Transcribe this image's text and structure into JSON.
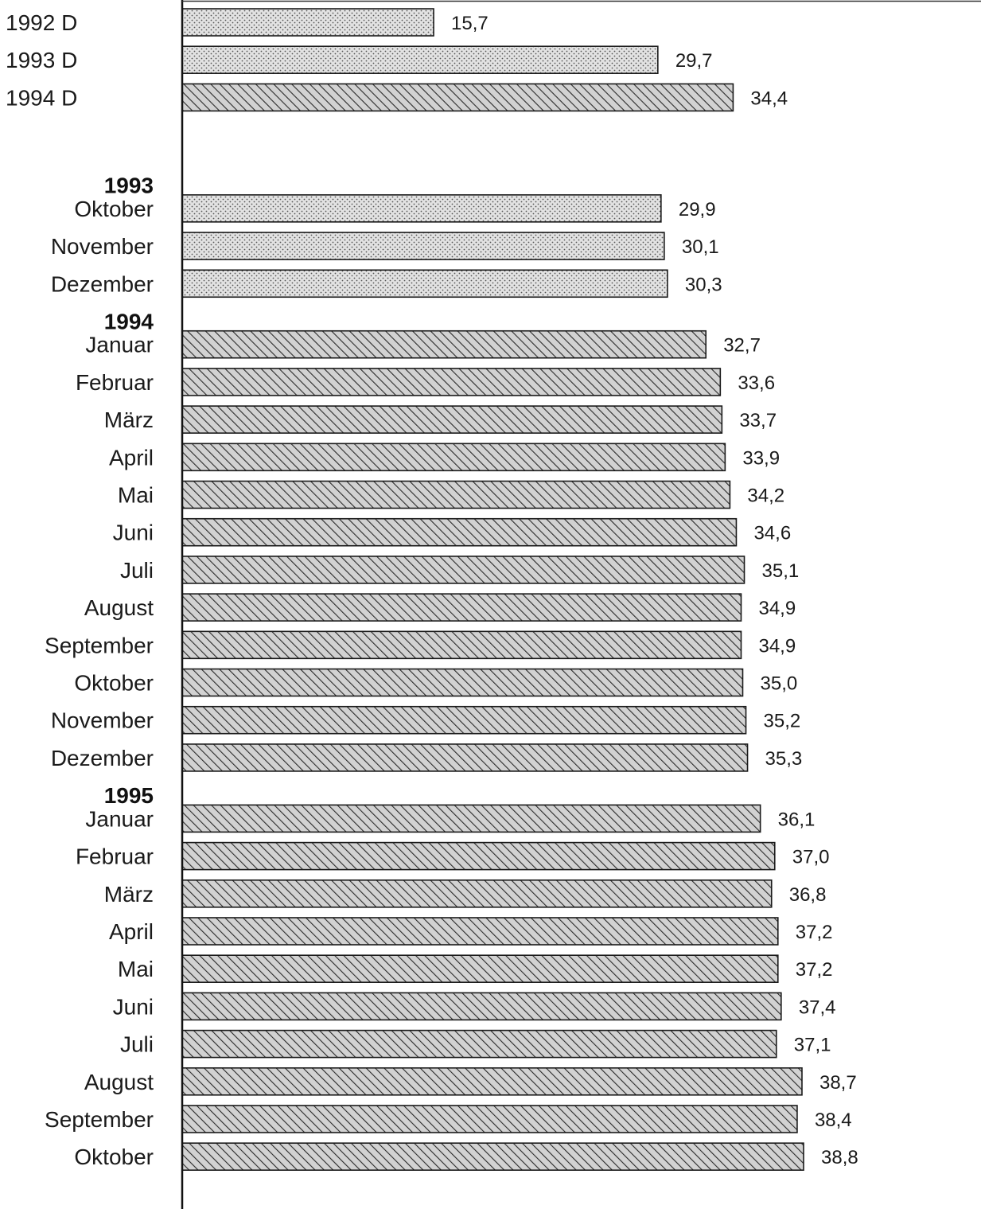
{
  "chart_data": {
    "type": "bar",
    "orientation": "horizontal",
    "title": "",
    "xlabel": "",
    "ylabel": "",
    "xlim": [
      0,
      40
    ],
    "grid": false,
    "legend": "none",
    "bar_color": "#d2d2d2",
    "hatch_color": "#2a2a2a",
    "rows": [
      {
        "kind": "bar",
        "label": "1992 D",
        "value": 15.7,
        "value_label": "15,7",
        "align": "left",
        "pattern": "dots"
      },
      {
        "kind": "bar",
        "label": "1993 D",
        "value": 29.7,
        "value_label": "29,7",
        "align": "left",
        "pattern": "dots"
      },
      {
        "kind": "bar",
        "label": "1994 D",
        "value": 34.4,
        "value_label": "34,4",
        "align": "left",
        "pattern": "hatch"
      },
      {
        "kind": "gap"
      },
      {
        "kind": "group",
        "label": "1993"
      },
      {
        "kind": "bar",
        "label": "Oktober",
        "value": 29.9,
        "value_label": "29,9",
        "align": "right",
        "pattern": "dots"
      },
      {
        "kind": "bar",
        "label": "November",
        "value": 30.1,
        "value_label": "30,1",
        "align": "right",
        "pattern": "dots"
      },
      {
        "kind": "bar",
        "label": "Dezember",
        "value": 30.3,
        "value_label": "30,3",
        "align": "right",
        "pattern": "dots"
      },
      {
        "kind": "group",
        "label": "1994"
      },
      {
        "kind": "bar",
        "label": "Januar",
        "value": 32.7,
        "value_label": "32,7",
        "align": "right",
        "pattern": "hatch"
      },
      {
        "kind": "bar",
        "label": "Februar",
        "value": 33.6,
        "value_label": "33,6",
        "align": "right",
        "pattern": "hatch"
      },
      {
        "kind": "bar",
        "label": "März",
        "value": 33.7,
        "value_label": "33,7",
        "align": "right",
        "pattern": "hatch"
      },
      {
        "kind": "bar",
        "label": "April",
        "value": 33.9,
        "value_label": "33,9",
        "align": "right",
        "pattern": "hatch"
      },
      {
        "kind": "bar",
        "label": "Mai",
        "value": 34.2,
        "value_label": "34,2",
        "align": "right",
        "pattern": "hatch"
      },
      {
        "kind": "bar",
        "label": "Juni",
        "value": 34.6,
        "value_label": "34,6",
        "align": "right",
        "pattern": "hatch"
      },
      {
        "kind": "bar",
        "label": "Juli",
        "value": 35.1,
        "value_label": "35,1",
        "align": "right",
        "pattern": "hatch"
      },
      {
        "kind": "bar",
        "label": "August",
        "value": 34.9,
        "value_label": "34,9",
        "align": "right",
        "pattern": "hatch"
      },
      {
        "kind": "bar",
        "label": "September",
        "value": 34.9,
        "value_label": "34,9",
        "align": "right",
        "pattern": "hatch"
      },
      {
        "kind": "bar",
        "label": "Oktober",
        "value": 35.0,
        "value_label": "35,0",
        "align": "right",
        "pattern": "hatch"
      },
      {
        "kind": "bar",
        "label": "November",
        "value": 35.2,
        "value_label": "35,2",
        "align": "right",
        "pattern": "hatch"
      },
      {
        "kind": "bar",
        "label": "Dezember",
        "value": 35.3,
        "value_label": "35,3",
        "align": "right",
        "pattern": "hatch"
      },
      {
        "kind": "group",
        "label": "1995"
      },
      {
        "kind": "bar",
        "label": "Januar",
        "value": 36.1,
        "value_label": "36,1",
        "align": "right",
        "pattern": "hatch"
      },
      {
        "kind": "bar",
        "label": "Februar",
        "value": 37.0,
        "value_label": "37,0",
        "align": "right",
        "pattern": "hatch"
      },
      {
        "kind": "bar",
        "label": "März",
        "value": 36.8,
        "value_label": "36,8",
        "align": "right",
        "pattern": "hatch"
      },
      {
        "kind": "bar",
        "label": "April",
        "value": 37.2,
        "value_label": "37,2",
        "align": "right",
        "pattern": "hatch"
      },
      {
        "kind": "bar",
        "label": "Mai",
        "value": 37.2,
        "value_label": "37,2",
        "align": "right",
        "pattern": "hatch"
      },
      {
        "kind": "bar",
        "label": "Juni",
        "value": 37.4,
        "value_label": "37,4",
        "align": "right",
        "pattern": "hatch"
      },
      {
        "kind": "bar",
        "label": "Juli",
        "value": 37.1,
        "value_label": "37,1",
        "align": "right",
        "pattern": "hatch"
      },
      {
        "kind": "bar",
        "label": "August",
        "value": 38.7,
        "value_label": "38,7",
        "align": "right",
        "pattern": "hatch"
      },
      {
        "kind": "bar",
        "label": "September",
        "value": 38.4,
        "value_label": "38,4",
        "align": "right",
        "pattern": "hatch"
      },
      {
        "kind": "bar",
        "label": "Oktober",
        "value": 38.8,
        "value_label": "38,8",
        "align": "right",
        "pattern": "hatch"
      }
    ]
  }
}
